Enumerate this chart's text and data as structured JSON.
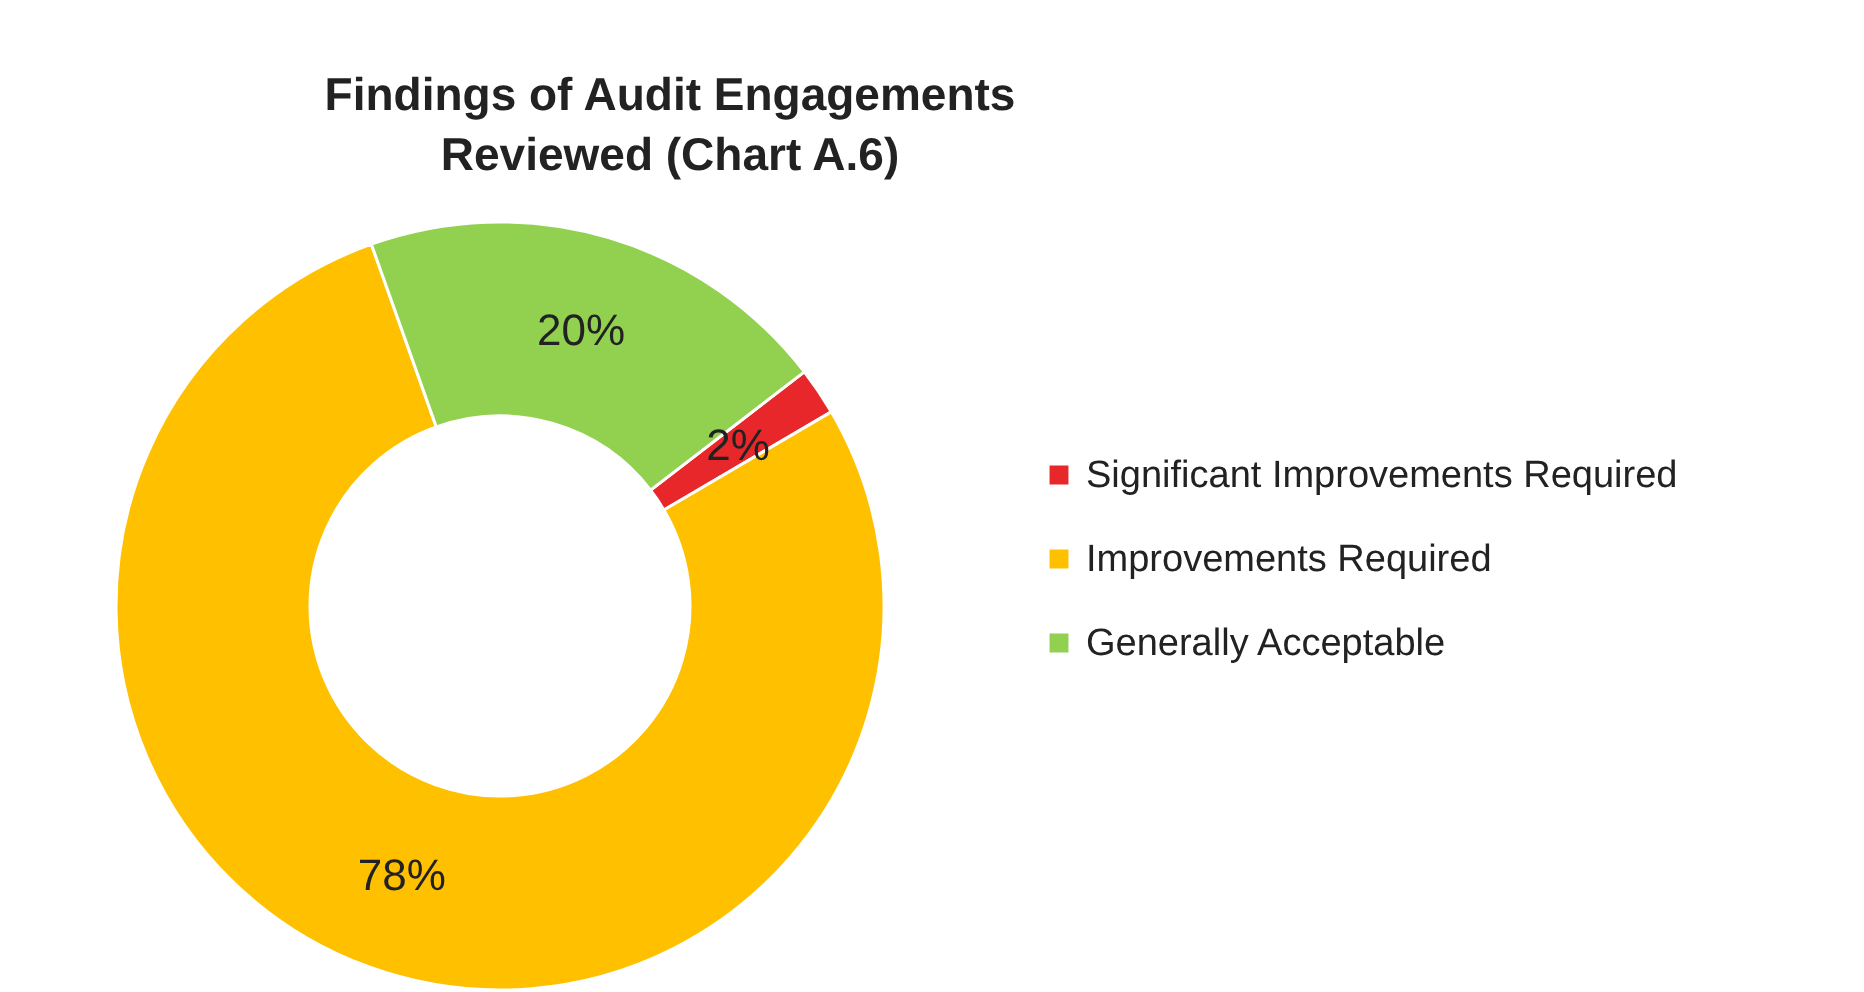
{
  "chart_data": {
    "type": "donut",
    "title": "Findings of Audit Engagements Reviewed (Chart A.6)",
    "categories": [
      "Significant Improvements Required",
      "Improvements Required",
      "Generally Acceptable"
    ],
    "values": [
      2,
      78,
      20
    ],
    "colors": [
      "#e8272a",
      "#ffc000",
      "#92d050"
    ],
    "value_labels": [
      "2%",
      "78%",
      "20%"
    ],
    "legend": "right"
  }
}
